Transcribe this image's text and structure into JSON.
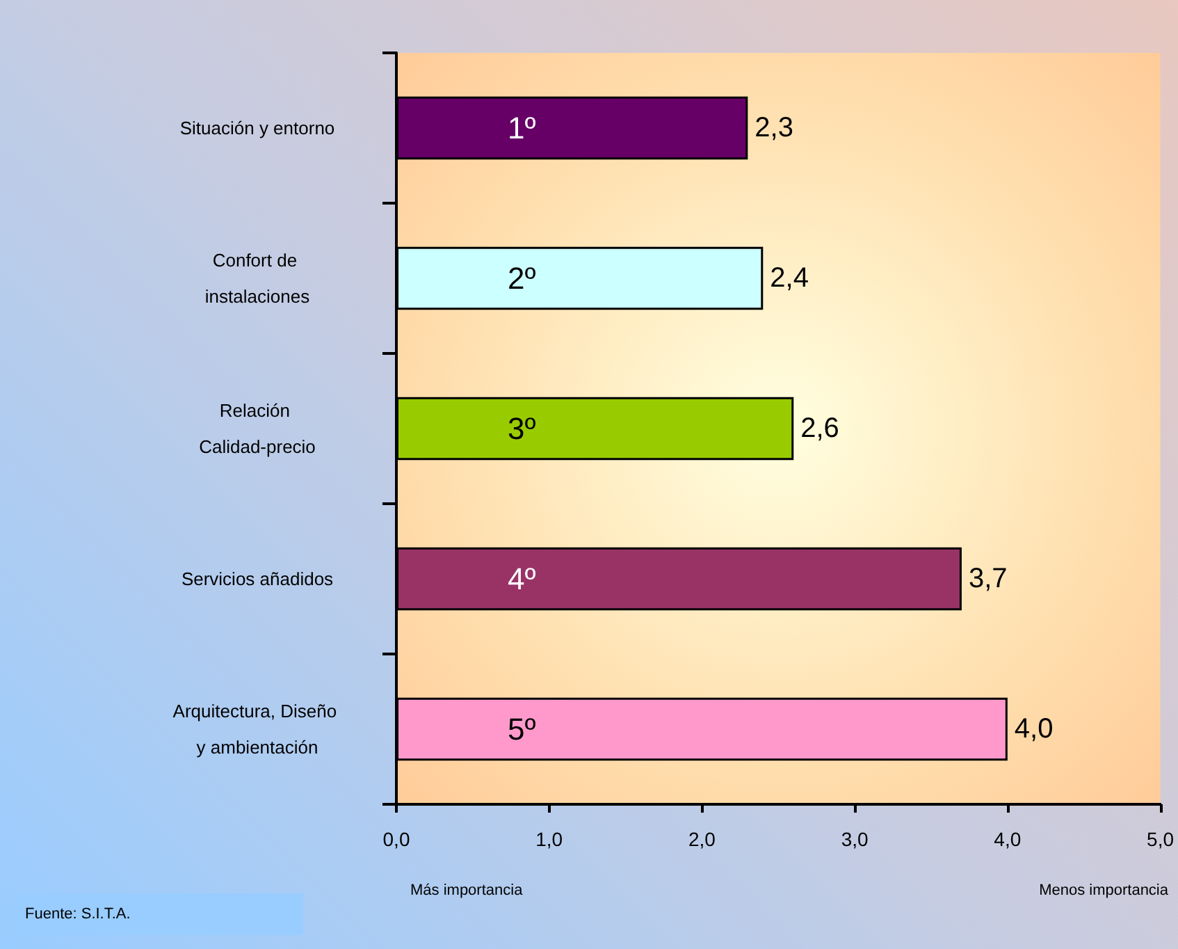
{
  "chart_data": {
    "type": "bar",
    "orientation": "horizontal",
    "categories": [
      "Situación y entorno",
      "Confort de instalaciones",
      "Relación Calidad-precio",
      "Servicios añadidos",
      "Arquitectura, Diseño y ambientación"
    ],
    "values": [
      2.3,
      2.4,
      2.6,
      3.7,
      4.0
    ],
    "colors": [
      "#660066",
      "#ccffff",
      "#99cc00",
      "#993366",
      "#ff99cc"
    ],
    "value_labels": [
      "2,3",
      "2,4",
      "2,6",
      "3,7",
      "4,0"
    ],
    "xlim": [
      0,
      5
    ],
    "xticks": [
      {
        "value": 0,
        "label": "0,0"
      },
      {
        "value": 1,
        "label": "1,0"
      },
      {
        "value": 2,
        "label": "2,0"
      },
      {
        "value": 3,
        "label": "3,0"
      },
      {
        "value": 4,
        "label": "4,0"
      },
      {
        "value": 5,
        "label": "5,0"
      }
    ],
    "grid": false,
    "annotations": [
      "1º",
      "2º",
      "3º",
      "4º",
      "5º",
      "Más importancia",
      "Menos importancia",
      "Fuente: S.I.T.A."
    ]
  }
}
